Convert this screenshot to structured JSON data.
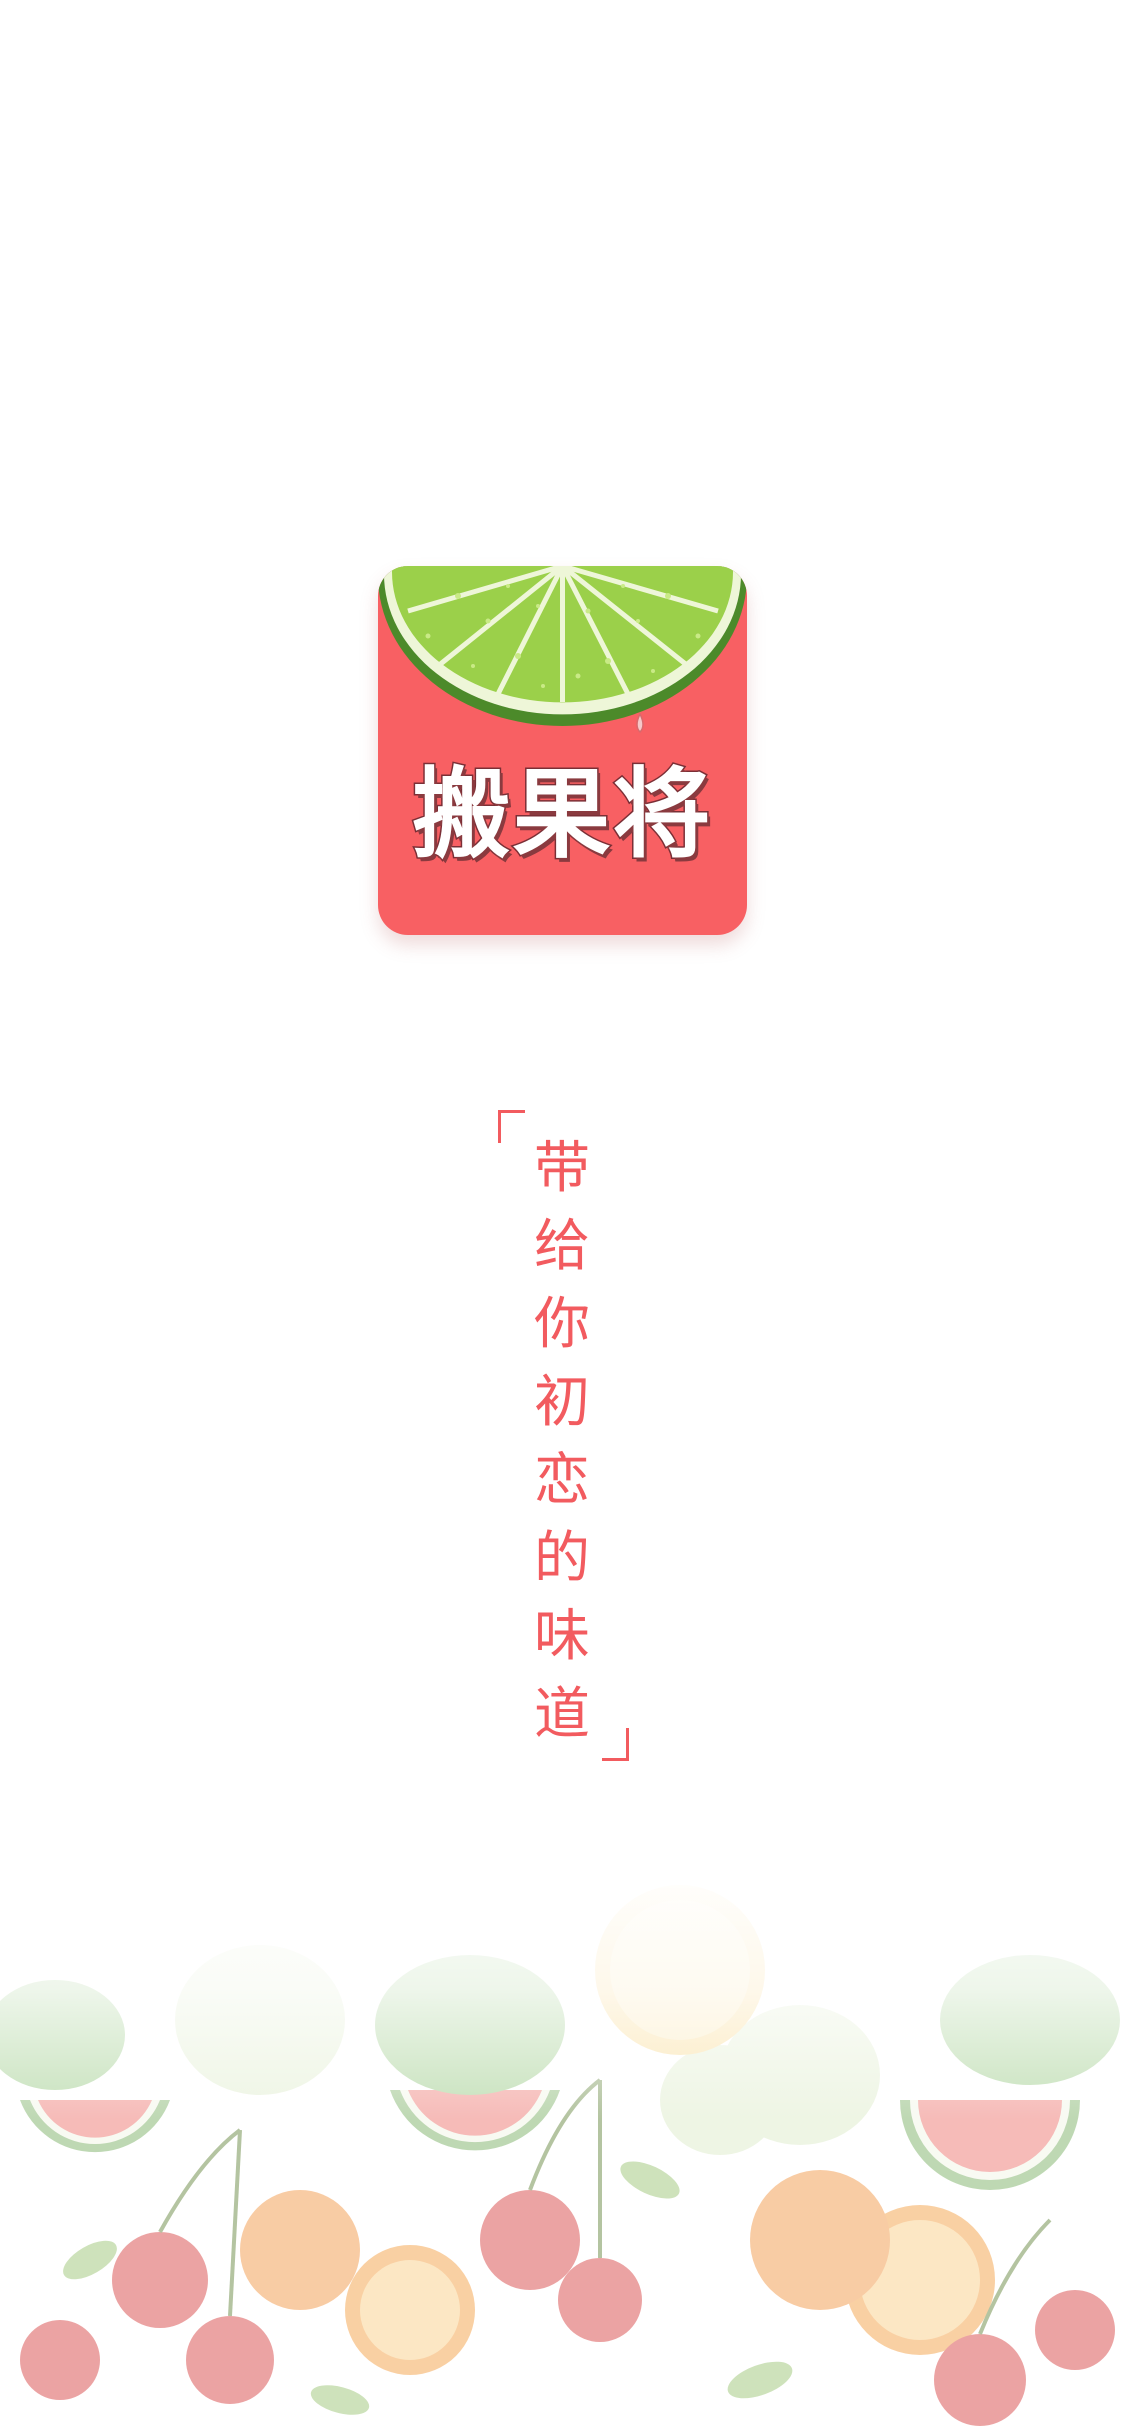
{
  "app": {
    "name": "搬果将",
    "slogan_chars": [
      "带",
      "给",
      "你",
      "初",
      "恋",
      "的",
      "味",
      "道"
    ],
    "brand_color": "#f86063",
    "accent_text_color": "#f25b5f",
    "lime_color": "#9bd04a"
  },
  "decor": {
    "open_bracket_icon": "corner-bracket-open-icon",
    "close_bracket_icon": "corner-bracket-close-icon",
    "background": "faded-fruit-pattern"
  }
}
